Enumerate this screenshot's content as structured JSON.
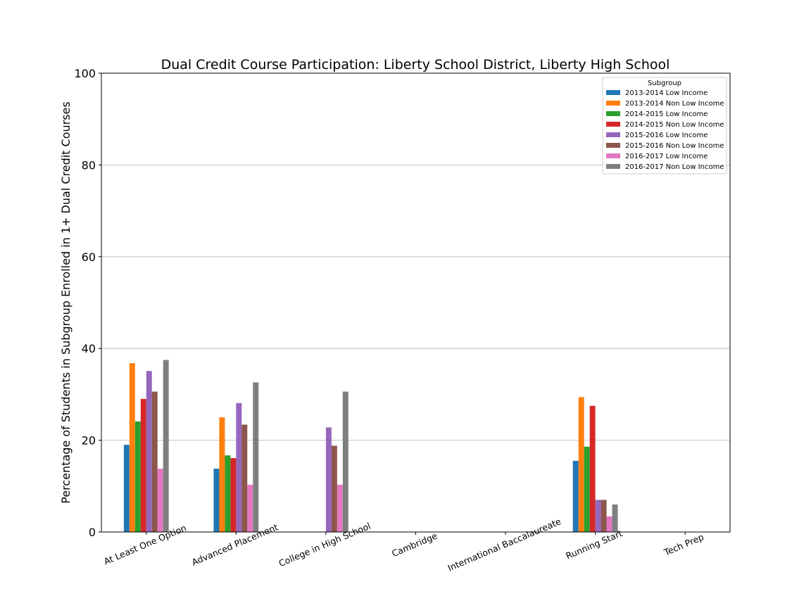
{
  "chart_data": {
    "type": "bar",
    "title": "Dual Credit Course Participation: Liberty School District, Liberty High School",
    "xlabel": "",
    "ylabel": "Percentage of Students in Subgroup Enrolled in 1+ Dual Credit Courses",
    "ylim": [
      0,
      100
    ],
    "yticks": [
      "0",
      "20",
      "40",
      "60",
      "80",
      "100"
    ],
    "grid": "y",
    "legend_title": "Subgroup",
    "legend_position": "top-right",
    "categories": [
      "At Least One Option",
      "Advanced Placement",
      "College in High School",
      "Cambridge",
      "International Baccalaureate",
      "Running Start",
      "Tech Prep"
    ],
    "series": [
      {
        "name": "2013-2014 Low Income",
        "color": "#1f77b4",
        "values": [
          19.0,
          13.8,
          null,
          null,
          null,
          15.5,
          null
        ]
      },
      {
        "name": "2013-2014 Non Low Income",
        "color": "#ff7f0e",
        "values": [
          36.8,
          25.0,
          null,
          null,
          null,
          29.4,
          null
        ]
      },
      {
        "name": "2014-2015 Low Income",
        "color": "#2ca02c",
        "values": [
          24.1,
          16.7,
          null,
          null,
          null,
          18.6,
          null
        ]
      },
      {
        "name": "2014-2015 Non Low Income",
        "color": "#d62728",
        "values": [
          29.0,
          16.1,
          null,
          null,
          null,
          27.5,
          null
        ]
      },
      {
        "name": "2015-2016 Low Income",
        "color": "#9467bd",
        "values": [
          35.1,
          28.1,
          22.8,
          null,
          null,
          7.0,
          null
        ]
      },
      {
        "name": "2015-2016 Non Low Income",
        "color": "#8c564b",
        "values": [
          30.6,
          23.4,
          18.8,
          null,
          null,
          7.0,
          null
        ]
      },
      {
        "name": "2016-2017 Low Income",
        "color": "#e377c2",
        "values": [
          13.8,
          10.3,
          10.3,
          null,
          null,
          3.4,
          null
        ]
      },
      {
        "name": "2016-2017 Non Low Income",
        "color": "#7f7f7f",
        "values": [
          37.5,
          32.6,
          30.6,
          null,
          null,
          6.0,
          null
        ]
      }
    ]
  }
}
